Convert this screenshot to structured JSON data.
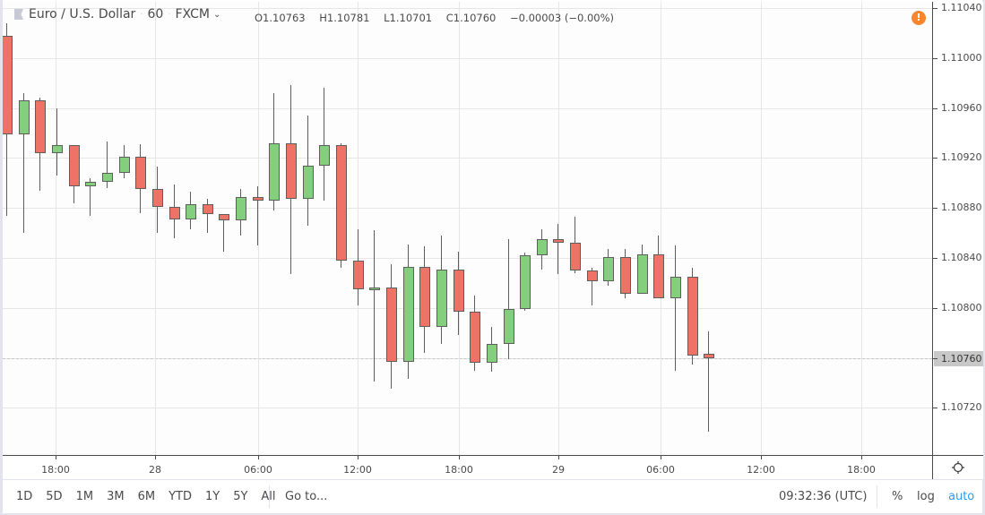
{
  "legend": {
    "symbol": "Euro / U.S. Dollar",
    "interval": "60",
    "source": "FXCM",
    "open": "O1.10763",
    "high": "H1.10781",
    "low": "L1.10701",
    "close": "C1.10760",
    "change": "−0.00003 (−0.00%)"
  },
  "colors": {
    "up": "#84cf7e",
    "down": "#ee7366",
    "wick": "#5d5d5d",
    "accent": "#2d9cf0",
    "warning": "#f7862e"
  },
  "yaxis": {
    "labels": [
      "1.11040",
      "1.11000",
      "1.10960",
      "1.10920",
      "1.10880",
      "1.10840",
      "1.10800",
      "1.10760",
      "1.10720"
    ],
    "last_price": "1.10760"
  },
  "xaxis": {
    "labels": [
      "18:00",
      "28",
      "06:00",
      "12:00",
      "18:00",
      "29",
      "06:00",
      "12:00",
      "18:00"
    ]
  },
  "bottombar": {
    "ranges": [
      "1D",
      "5D",
      "1M",
      "3M",
      "6M",
      "YTD",
      "1Y",
      "5Y",
      "All"
    ],
    "goto": "Go to...",
    "clock": "09:32:36 (UTC)",
    "percent": "%",
    "log": "log",
    "auto": "auto"
  },
  "warning_icon": "!",
  "chart_data": {
    "type": "candlestick",
    "title": "Euro / U.S. Dollar · 60 · FXCM",
    "xlabel": "",
    "ylabel": "",
    "ylim": [
      1.1069,
      1.11045
    ],
    "grid": true,
    "last_price": 1.1076,
    "x_tick_labels": [
      "18:00",
      "28",
      "06:00",
      "12:00",
      "18:00",
      "29",
      "06:00",
      "12:00",
      "18:00"
    ],
    "y_tick_labels": [
      "1.11040",
      "1.11000",
      "1.10960",
      "1.10920",
      "1.10880",
      "1.10840",
      "1.10800",
      "1.10760",
      "1.10720"
    ],
    "candles": [
      {
        "o": 1.11018,
        "h": 1.11028,
        "l": 1.10874,
        "c": 1.10939
      },
      {
        "o": 1.10939,
        "h": 1.10972,
        "l": 1.1086,
        "c": 1.10966
      },
      {
        "o": 1.10966,
        "h": 1.10968,
        "l": 1.10894,
        "c": 1.10924
      },
      {
        "o": 1.10924,
        "h": 1.1096,
        "l": 1.10906,
        "c": 1.1093
      },
      {
        "o": 1.1093,
        "h": 1.1093,
        "l": 1.10884,
        "c": 1.10897
      },
      {
        "o": 1.10897,
        "h": 1.10904,
        "l": 1.10874,
        "c": 1.10901
      },
      {
        "o": 1.10901,
        "h": 1.10933,
        "l": 1.10896,
        "c": 1.10908
      },
      {
        "o": 1.10908,
        "h": 1.1093,
        "l": 1.10904,
        "c": 1.10921
      },
      {
        "o": 1.10921,
        "h": 1.10931,
        "l": 1.10876,
        "c": 1.10895
      },
      {
        "o": 1.10895,
        "h": 1.10913,
        "l": 1.1086,
        "c": 1.10881
      },
      {
        "o": 1.10881,
        "h": 1.10899,
        "l": 1.10856,
        "c": 1.10871
      },
      {
        "o": 1.10871,
        "h": 1.10893,
        "l": 1.10863,
        "c": 1.10883
      },
      {
        "o": 1.10883,
        "h": 1.10887,
        "l": 1.1086,
        "c": 1.10875
      },
      {
        "o": 1.10875,
        "h": 1.10875,
        "l": 1.10845,
        "c": 1.1087
      },
      {
        "o": 1.1087,
        "h": 1.10895,
        "l": 1.10858,
        "c": 1.10889
      },
      {
        "o": 1.10889,
        "h": 1.10897,
        "l": 1.1085,
        "c": 1.10886
      },
      {
        "o": 1.10886,
        "h": 1.10972,
        "l": 1.10878,
        "c": 1.10932
      },
      {
        "o": 1.10932,
        "h": 1.10978,
        "l": 1.10827,
        "c": 1.10887
      },
      {
        "o": 1.10887,
        "h": 1.10954,
        "l": 1.10866,
        "c": 1.10914
      },
      {
        "o": 1.10914,
        "h": 1.10976,
        "l": 1.10886,
        "c": 1.1093
      },
      {
        "o": 1.1093,
        "h": 1.10932,
        "l": 1.10832,
        "c": 1.10838
      },
      {
        "o": 1.10838,
        "h": 1.10863,
        "l": 1.10802,
        "c": 1.10815
      },
      {
        "o": 1.10816,
        "h": 1.10862,
        "l": 1.10741,
        "c": 1.10816
      },
      {
        "o": 1.10816,
        "h": 1.10835,
        "l": 1.10735,
        "c": 1.10757
      },
      {
        "o": 1.10757,
        "h": 1.10851,
        "l": 1.10743,
        "c": 1.10833
      },
      {
        "o": 1.10833,
        "h": 1.10849,
        "l": 1.10764,
        "c": 1.10785
      },
      {
        "o": 1.10785,
        "h": 1.10858,
        "l": 1.10771,
        "c": 1.10831
      },
      {
        "o": 1.10831,
        "h": 1.10845,
        "l": 1.10778,
        "c": 1.10797
      },
      {
        "o": 1.10797,
        "h": 1.1081,
        "l": 1.1075,
        "c": 1.10756
      },
      {
        "o": 1.10756,
        "h": 1.10785,
        "l": 1.10749,
        "c": 1.10771
      },
      {
        "o": 1.10771,
        "h": 1.10855,
        "l": 1.10759,
        "c": 1.10799
      },
      {
        "o": 1.10799,
        "h": 1.10844,
        "l": 1.10798,
        "c": 1.10842
      },
      {
        "o": 1.10842,
        "h": 1.10863,
        "l": 1.10831,
        "c": 1.10855
      },
      {
        "o": 1.10855,
        "h": 1.10867,
        "l": 1.10827,
        "c": 1.10852
      },
      {
        "o": 1.10852,
        "h": 1.10873,
        "l": 1.10828,
        "c": 1.1083
      },
      {
        "o": 1.1083,
        "h": 1.10832,
        "l": 1.10802,
        "c": 1.10821
      },
      {
        "o": 1.10821,
        "h": 1.10847,
        "l": 1.10818,
        "c": 1.10841
      },
      {
        "o": 1.10841,
        "h": 1.10847,
        "l": 1.10808,
        "c": 1.10811
      },
      {
        "o": 1.10811,
        "h": 1.10851,
        "l": 1.10811,
        "c": 1.10843
      },
      {
        "o": 1.10843,
        "h": 1.10858,
        "l": 1.10808,
        "c": 1.10808
      },
      {
        "o": 1.10808,
        "h": 1.1085,
        "l": 1.1075,
        "c": 1.10825
      },
      {
        "o": 1.10825,
        "h": 1.10832,
        "l": 1.10755,
        "c": 1.10762
      },
      {
        "o": 1.10763,
        "h": 1.10781,
        "l": 1.10701,
        "c": 1.1076
      }
    ]
  }
}
